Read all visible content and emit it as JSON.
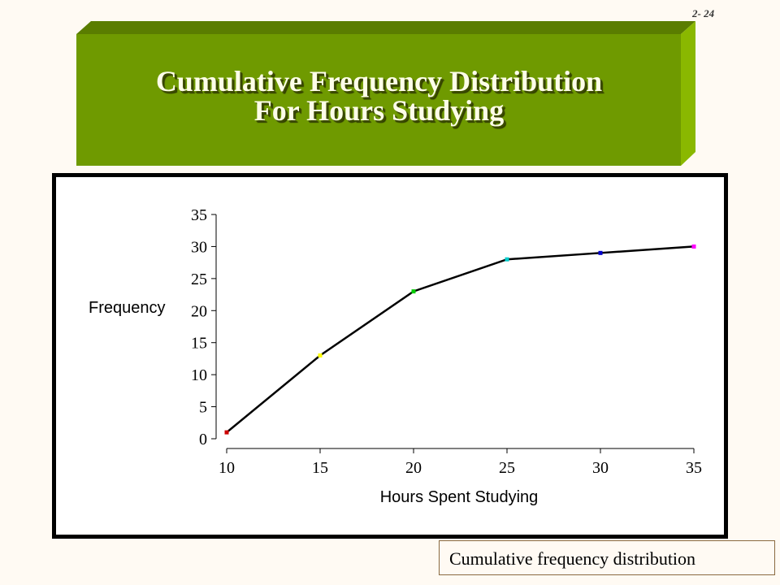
{
  "slide": {
    "number": "2- 24",
    "title_line1": "Cumulative Frequency Distribution",
    "title_line2": "For Hours Studying",
    "caption": "Cumulative frequency distribution",
    "colors": {
      "title_bar": "#6f9a00",
      "title_bar_top": "#5a7d00",
      "title_bar_side": "#8ab800",
      "background": "#fffaf3"
    }
  },
  "chart_data": {
    "type": "line",
    "title": "",
    "xlabel": "Hours Spent Studying",
    "ylabel": "Frequency",
    "x": [
      10,
      15,
      20,
      25,
      30,
      35
    ],
    "x_ticks": [
      "10",
      "15",
      "20",
      "25",
      "30",
      "35"
    ],
    "y_ticks": [
      "0",
      "5",
      "10",
      "15",
      "20",
      "25",
      "30",
      "35"
    ],
    "ylim": [
      0,
      35
    ],
    "xlim": [
      10,
      35
    ],
    "grid": false,
    "series": [
      {
        "values": [
          1,
          13,
          23,
          28,
          29,
          30
        ],
        "line_color": "#000000",
        "marker_colors": [
          "#cc0000",
          "#ffff00",
          "#00cc00",
          "#00cccc",
          "#0000cc",
          "#ff00ff"
        ]
      }
    ]
  }
}
